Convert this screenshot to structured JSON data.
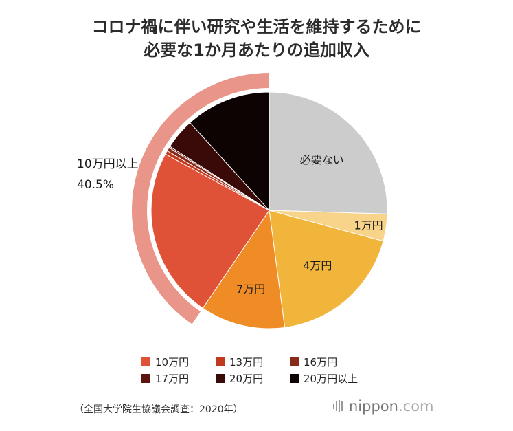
{
  "title_lines": [
    "コロナ禍に伴い研究や生活を維持するために",
    "必要な1か月あたりの追加収入"
  ],
  "chart_data": {
    "type": "pie",
    "title": "コロナ禍に伴い研究や生活を維持するために必要な1か月あたりの追加収入",
    "categories": [
      "必要ない",
      "1万円",
      "4万円",
      "7万円",
      "10万円",
      "13万円",
      "16万円",
      "17万円",
      "20万円",
      "20万円以上"
    ],
    "values": [
      25.5,
      3.7,
      18.7,
      11.6,
      23.4,
      0.5,
      0.5,
      0.2,
      4.2,
      11.7
    ],
    "colors": [
      "#cccccc",
      "#f7d48a",
      "#f2b53c",
      "#f08c25",
      "#e05238",
      "#c23a1e",
      "#8a2a18",
      "#5e1410",
      "#3a0a08",
      "#0d0303"
    ],
    "slice_labels": [
      "必要ない",
      "1万円",
      "4万円",
      "7万円",
      "",
      "",
      "",
      "",
      "",
      ""
    ],
    "group_ring": {
      "label": "10万円以上",
      "value_label": "40.5%",
      "from_index": 4,
      "to_index": 9,
      "color": "#ea958a"
    },
    "legend_position": "bottom"
  },
  "legend": [
    {
      "label": "10万円",
      "color": "#e05238"
    },
    {
      "label": "13万円",
      "color": "#c23a1e"
    },
    {
      "label": "16万円",
      "color": "#8a2a18"
    },
    {
      "label": "17万円",
      "color": "#5e1410"
    },
    {
      "label": "20万円",
      "color": "#3a0a08"
    },
    {
      "label": "20万円以上",
      "color": "#0d0303"
    }
  ],
  "source": "（全国大学院生協議会調査：2020年）",
  "brand": {
    "name": "nippon",
    "suffix": ".com"
  }
}
